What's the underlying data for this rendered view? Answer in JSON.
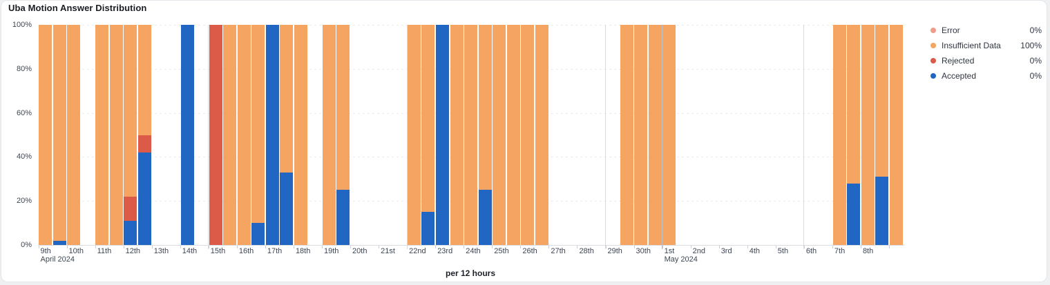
{
  "card": {
    "title": "Uba Motion Answer Distribution"
  },
  "chart_data": {
    "type": "bar",
    "stacked": true,
    "unit": "percent",
    "title": "Uba Motion Answer Distribution",
    "xlabel": "per 12 hours",
    "ylabel": "",
    "ylim": [
      0,
      100
    ],
    "ytick_values": [
      0,
      20,
      40,
      60,
      80,
      100
    ],
    "ytick_labels": [
      "0%",
      "20%",
      "40%",
      "60%",
      "80%",
      "100%"
    ],
    "grid": "horizontal-dashed",
    "legend_position": "right",
    "legend": [
      {
        "name": "Error",
        "value": "0%",
        "color": "#ee9c8c"
      },
      {
        "name": "Insufficient Data",
        "value": "100%",
        "color": "#f6a462"
      },
      {
        "name": "Rejected",
        "value": "0%",
        "color": "#dc5b48"
      },
      {
        "name": "Accepted",
        "value": "0%",
        "color": "#2166c3"
      }
    ],
    "series_order_bottom_to_top": [
      "accepted",
      "rejected",
      "insufficient",
      "error"
    ],
    "colors": {
      "accepted": "#2166c3",
      "rejected": "#dc5b48",
      "insufficient": "#f6a462",
      "error": "#ee9c8c"
    },
    "day_ticks": [
      "9th",
      "10th",
      "11th",
      "12th",
      "13th",
      "14th",
      "15th",
      "16th",
      "17th",
      "18th",
      "19th",
      "20th",
      "21st",
      "22nd",
      "23rd",
      "24th",
      "25th",
      "26th",
      "27th",
      "28th",
      "29th",
      "30th",
      "1st",
      "2nd",
      "3rd",
      "4th",
      "5th",
      "6th",
      "7th",
      "8th",
      ""
    ],
    "month_labels": [
      {
        "day_index": 0,
        "label": "April 2024"
      },
      {
        "day_index": 22,
        "label": "May 2024"
      }
    ],
    "separators": [
      {
        "day_index": 6,
        "kind": "week"
      },
      {
        "day_index": 13,
        "kind": "week"
      },
      {
        "day_index": 20,
        "kind": "week"
      },
      {
        "day_index": 22,
        "kind": "month"
      },
      {
        "day_index": 27,
        "kind": "week"
      }
    ],
    "bars": [
      {
        "slot": 0,
        "insufficient": 100
      },
      {
        "slot": 1,
        "accepted": 2,
        "insufficient": 98
      },
      {
        "slot": 2,
        "insufficient": 100
      },
      {
        "slot": 4,
        "insufficient": 100
      },
      {
        "slot": 5,
        "insufficient": 100
      },
      {
        "slot": 6,
        "accepted": 11,
        "rejected": 11,
        "insufficient": 78
      },
      {
        "slot": 7,
        "accepted": 42,
        "rejected": 8,
        "insufficient": 50
      },
      {
        "slot": 10,
        "accepted": 100
      },
      {
        "slot": 12,
        "rejected": 100
      },
      {
        "slot": 13,
        "insufficient": 100
      },
      {
        "slot": 14,
        "insufficient": 100
      },
      {
        "slot": 15,
        "accepted": 10,
        "insufficient": 90
      },
      {
        "slot": 16,
        "accepted": 100
      },
      {
        "slot": 17,
        "accepted": 33,
        "insufficient": 67
      },
      {
        "slot": 18,
        "insufficient": 100
      },
      {
        "slot": 20,
        "insufficient": 100
      },
      {
        "slot": 21,
        "accepted": 25,
        "insufficient": 75
      },
      {
        "slot": 26,
        "insufficient": 100
      },
      {
        "slot": 27,
        "accepted": 15,
        "insufficient": 85
      },
      {
        "slot": 28,
        "accepted": 100
      },
      {
        "slot": 29,
        "insufficient": 100
      },
      {
        "slot": 30,
        "insufficient": 100
      },
      {
        "slot": 31,
        "accepted": 25,
        "insufficient": 75
      },
      {
        "slot": 32,
        "insufficient": 100
      },
      {
        "slot": 33,
        "insufficient": 100
      },
      {
        "slot": 34,
        "insufficient": 100
      },
      {
        "slot": 35,
        "insufficient": 100
      },
      {
        "slot": 41,
        "insufficient": 100
      },
      {
        "slot": 42,
        "insufficient": 100
      },
      {
        "slot": 43,
        "insufficient": 100
      },
      {
        "slot": 44,
        "insufficient": 100
      },
      {
        "slot": 56,
        "insufficient": 100
      },
      {
        "slot": 57,
        "accepted": 28,
        "insufficient": 72
      },
      {
        "slot": 58,
        "insufficient": 100
      },
      {
        "slot": 59,
        "accepted": 31,
        "insufficient": 69
      },
      {
        "slot": 60,
        "insufficient": 100
      }
    ]
  }
}
